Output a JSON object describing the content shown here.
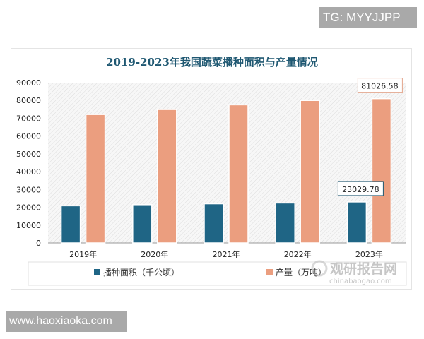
{
  "watermark_top": "TG: MYYJJPP",
  "watermark_bottom": "www.haoxiaoka.com",
  "logo": {
    "cn": "观研报告网",
    "en": "chinabaogao.com"
  },
  "chart_data": {
    "type": "bar",
    "title": "2019-2023年我国蔬菜播种面积与产量情况",
    "categories": [
      "2019年",
      "2020年",
      "2021年",
      "2022年",
      "2023年"
    ],
    "series": [
      {
        "name": "播种面积（千公顷）",
        "color": "#1f6585",
        "values": [
          20862.7,
          21485.5,
          21986,
          22434,
          23029.78
        ]
      },
      {
        "name": "产量（万吨）",
        "color": "#eb9e7f",
        "values": [
          72102.6,
          74912.9,
          77548.8,
          79997.2,
          81026.58
        ]
      }
    ],
    "data_labels": [
      "23029.78",
      "81026.58"
    ],
    "yticks": [
      "0",
      "10000",
      "20000",
      "30000",
      "40000",
      "50000",
      "60000",
      "70000",
      "80000",
      "90000"
    ],
    "ylim": [
      0,
      90000
    ],
    "legend": "bottom",
    "grid": false
  }
}
